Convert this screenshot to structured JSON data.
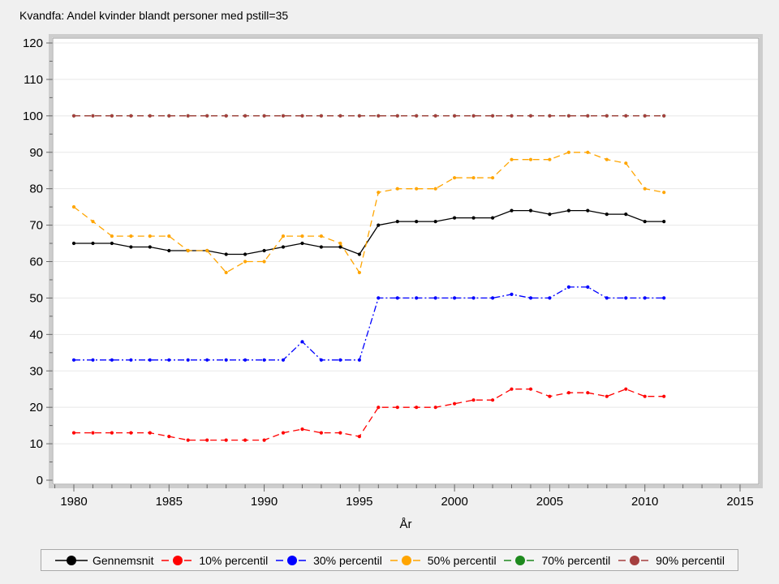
{
  "title": "Kvandfa: Andel kvinder blandt personer med pstill=35",
  "colors": {
    "page_bg": "#F0F0F0",
    "plot_bg": "#FFFFFF",
    "grid": "#E8E8E8",
    "frame": "#9C9C9C",
    "frame_outer": "#CDCDCD",
    "tick": "#666666",
    "text": "#000000",
    "legend_bg": "#F4F4F4",
    "legend_border": "#A9A9A9"
  },
  "chart_data": {
    "type": "line",
    "title": "Kvandfa: Andel kvinder blandt personer med pstill=35",
    "xlabel": "År",
    "ylabel": "",
    "x": [
      1980,
      1981,
      1982,
      1983,
      1984,
      1985,
      1986,
      1987,
      1988,
      1989,
      1990,
      1991,
      1992,
      1993,
      1994,
      1995,
      1996,
      1997,
      1998,
      1999,
      2000,
      2001,
      2002,
      2003,
      2004,
      2005,
      2006,
      2007,
      2008,
      2009,
      2010,
      2011
    ],
    "xlim": [
      1978.9,
      2016
    ],
    "ylim": [
      0,
      120
    ],
    "x_ticks": [
      1980,
      1985,
      1990,
      1995,
      2000,
      2005,
      2010,
      2015
    ],
    "x_minor_step": 1,
    "y_ticks": [
      0,
      10,
      20,
      30,
      40,
      50,
      60,
      70,
      80,
      90,
      100,
      110,
      120
    ],
    "y_minor_step": 5,
    "grid": "horizontal",
    "legend_position": "bottom",
    "series": [
      {
        "name": "Gennemsnit",
        "color": "#000000",
        "dash": "solid",
        "values": [
          65,
          65,
          65,
          64,
          64,
          63,
          63,
          63,
          62,
          62,
          63,
          64,
          65,
          64,
          64,
          62,
          70,
          71,
          71,
          71,
          72,
          72,
          72,
          74,
          74,
          73,
          74,
          74,
          73,
          73,
          71,
          71
        ]
      },
      {
        "name": "10% percentil",
        "color": "#FF0000",
        "dash": "dash",
        "values": [
          13,
          13,
          13,
          13,
          13,
          12,
          11,
          11,
          11,
          11,
          11,
          13,
          14,
          13,
          13,
          12,
          20,
          20,
          20,
          20,
          21,
          22,
          22,
          25,
          25,
          23,
          24,
          24,
          23,
          25,
          23,
          23
        ]
      },
      {
        "name": "30% percentil",
        "color": "#0000FF",
        "dash": "dash-dot",
        "values": [
          33,
          33,
          33,
          33,
          33,
          33,
          33,
          33,
          33,
          33,
          33,
          33,
          38,
          33,
          33,
          33,
          50,
          50,
          50,
          50,
          50,
          50,
          50,
          51,
          50,
          50,
          53,
          53,
          50,
          50,
          50,
          50
        ]
      },
      {
        "name": "50% percentil",
        "color": "#FFA500",
        "dash": "dash",
        "values": [
          75,
          71,
          67,
          67,
          67,
          67,
          63,
          63,
          57,
          60,
          60,
          67,
          67,
          67,
          65,
          57,
          79,
          80,
          80,
          80,
          83,
          83,
          83,
          88,
          88,
          88,
          90,
          90,
          88,
          87,
          80,
          79
        ]
      },
      {
        "name": "70% percentil",
        "color": "#1E8A1E",
        "dash": "dash",
        "values": [
          100,
          100,
          100,
          100,
          100,
          100,
          100,
          100,
          100,
          100,
          100,
          100,
          100,
          100,
          100,
          100,
          100,
          100,
          100,
          100,
          100,
          100,
          100,
          100,
          100,
          100,
          100,
          100,
          100,
          100,
          100,
          100
        ]
      },
      {
        "name": "90% percentil",
        "color": "#A53E3E",
        "dash": "dash",
        "values": [
          100,
          100,
          100,
          100,
          100,
          100,
          100,
          100,
          100,
          100,
          100,
          100,
          100,
          100,
          100,
          100,
          100,
          100,
          100,
          100,
          100,
          100,
          100,
          100,
          100,
          100,
          100,
          100,
          100,
          100,
          100,
          100
        ]
      }
    ]
  }
}
